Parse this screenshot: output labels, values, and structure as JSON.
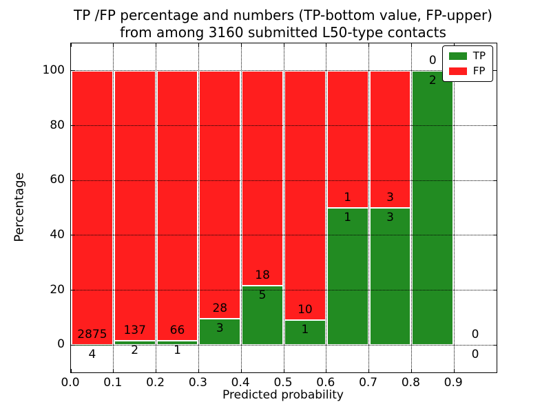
{
  "title": {
    "line1": "TP /FP percentage and numbers (TP-bottom value, FP-upper)",
    "line2": "from among 3160 submitted L50-type contacts"
  },
  "chart_data": {
    "type": "bar",
    "stacked": true,
    "normalized": "each bin scaled to 100%",
    "title": "TP /FP percentage and numbers (TP-bottom value, FP-upper) from among 3160 submitted L50-type contacts",
    "xlabel": "Predicted probability",
    "ylabel": "Percentage",
    "categories": [
      "0.0-0.1",
      "0.1-0.2",
      "0.2-0.3",
      "0.3-0.4",
      "0.4-0.5",
      "0.5-0.6",
      "0.6-0.7",
      "0.7-0.8",
      "0.8-0.9",
      "0.9-1.0"
    ],
    "series": [
      {
        "name": "TP",
        "color": "#228b22",
        "counts": [
          4,
          2,
          1,
          3,
          5,
          1,
          1,
          3,
          2,
          0
        ]
      },
      {
        "name": "FP",
        "color": "#ff1e1e",
        "counts": [
          2875,
          137,
          66,
          28,
          18,
          10,
          1,
          3,
          0,
          0
        ]
      }
    ],
    "total_contacts": 3160,
    "xticks": [
      "0.0",
      "0.1",
      "0.2",
      "0.3",
      "0.4",
      "0.5",
      "0.6",
      "0.7",
      "0.8",
      "0.9"
    ],
    "yticks": [
      0,
      20,
      40,
      60,
      80,
      100
    ],
    "xlim": [
      0.0,
      1.0
    ],
    "ylim": [
      -10,
      110
    ],
    "grid": "dotted black, drawn over bars",
    "legend_position": "upper right"
  }
}
